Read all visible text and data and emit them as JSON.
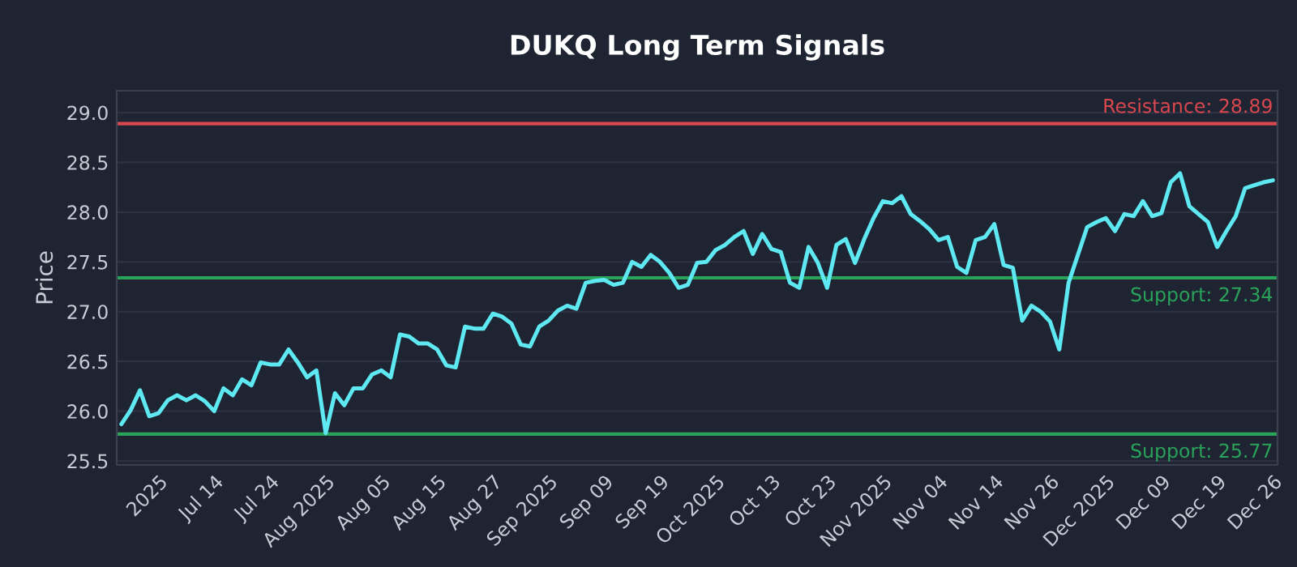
{
  "chart_data": {
    "type": "line",
    "title": "DUKQ Long Term Signals",
    "ylabel": "Price",
    "categories": [
      null,
      null,
      null,
      null,
      "2025",
      null,
      null,
      null,
      null,
      null,
      "Jul 14",
      null,
      null,
      null,
      null,
      null,
      "Jul 24",
      null,
      null,
      null,
      null,
      null,
      "Aug 2025",
      null,
      null,
      null,
      null,
      null,
      "Aug 05",
      null,
      null,
      null,
      null,
      null,
      "Aug 15",
      null,
      null,
      null,
      null,
      null,
      "Aug 27",
      null,
      null,
      null,
      null,
      null,
      "Sep 2025",
      null,
      null,
      null,
      null,
      null,
      "Sep 09",
      null,
      null,
      null,
      null,
      null,
      "Sep 19",
      null,
      null,
      null,
      null,
      null,
      "Oct 2025",
      null,
      null,
      null,
      null,
      null,
      "Oct 13",
      null,
      null,
      null,
      null,
      null,
      "Oct 23",
      null,
      null,
      null,
      null,
      null,
      "Nov 2025",
      null,
      null,
      null,
      null,
      null,
      "Nov 04",
      null,
      null,
      null,
      null,
      null,
      "Nov 14",
      null,
      null,
      null,
      null,
      null,
      "Nov 26",
      null,
      null,
      null,
      null,
      null,
      "Dec 2025",
      null,
      null,
      null,
      null,
      null,
      "Dec 09",
      null,
      null,
      null,
      null,
      null,
      "Dec 19",
      null,
      null,
      null,
      null,
      null,
      "Dec 26"
    ],
    "series": [
      {
        "color": "#5ee8f2",
        "values": [
          25.87,
          26.01,
          26.21,
          25.95,
          25.98,
          26.11,
          26.16,
          26.11,
          26.16,
          26.1,
          26.0,
          26.23,
          26.16,
          26.32,
          26.26,
          26.49,
          26.47,
          26.47,
          26.62,
          26.49,
          26.34,
          26.41,
          25.78,
          26.18,
          26.06,
          26.23,
          26.23,
          26.37,
          26.41,
          26.34,
          26.77,
          26.75,
          26.68,
          26.68,
          26.62,
          26.46,
          26.44,
          26.85,
          26.83,
          26.83,
          26.98,
          26.95,
          26.88,
          26.67,
          26.65,
          26.85,
          26.91,
          27.01,
          27.06,
          27.03,
          27.29,
          27.31,
          27.32,
          27.27,
          27.29,
          27.5,
          27.45,
          27.57,
          27.5,
          27.39,
          27.24,
          27.27,
          27.49,
          27.5,
          27.62,
          27.67,
          27.75,
          27.81,
          27.58,
          27.78,
          27.63,
          27.6,
          27.29,
          27.24,
          27.65,
          27.49,
          27.24,
          27.67,
          27.73,
          27.49,
          27.73,
          27.94,
          28.11,
          28.09,
          28.16,
          27.98,
          27.91,
          27.83,
          27.72,
          27.75,
          27.45,
          27.39,
          27.72,
          27.75,
          27.88,
          27.47,
          27.44,
          26.91,
          27.06,
          27.0,
          26.9,
          26.62,
          27.29,
          27.57,
          27.85,
          27.9,
          27.94,
          27.81,
          27.98,
          27.96,
          28.11,
          27.96,
          27.99,
          28.3,
          28.39,
          28.06,
          27.98,
          27.9,
          27.65,
          27.81,
          27.96,
          28.24,
          28.27,
          28.3,
          28.32
        ]
      }
    ],
    "ylim": [
      25.46,
      29.22
    ],
    "yticks": [
      25.5,
      {
        "value": 26,
        "label": "26.0"
      },
      26.5,
      {
        "value": 27,
        "label": "27.0"
      },
      27.5,
      {
        "value": 28,
        "label": "28.0"
      },
      28.5,
      {
        "value": 29,
        "label": "29.0"
      }
    ],
    "ref_lines": [
      {
        "axis": "y",
        "value": 28.89,
        "label": "Resistance: 28.89",
        "color": "#d9474f"
      },
      {
        "axis": "y",
        "value": 27.34,
        "label": "Support: 27.34",
        "color": "#2aa35a"
      },
      {
        "axis": "y",
        "value": 25.77,
        "label": "Support: 25.77",
        "color": "#2aa35a"
      }
    ],
    "grid": "y",
    "marker": "none",
    "line_style": "solid"
  }
}
